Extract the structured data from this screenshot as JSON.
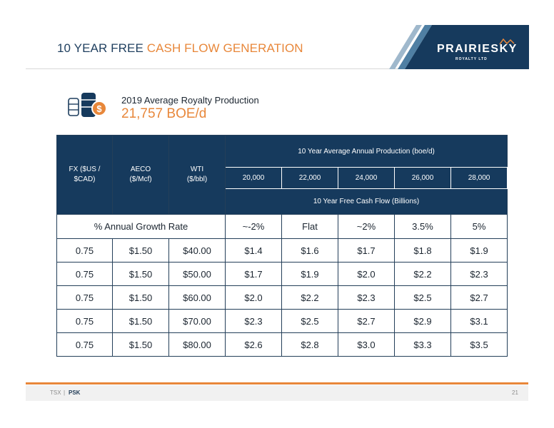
{
  "header": {
    "title_main": "10 YEAR FREE ",
    "title_accent": "CASH FLOW GENERATION"
  },
  "logo": {
    "text": "PRAIRIESKY",
    "subtext": "ROYALTY LTD"
  },
  "production": {
    "icon": "oil-barrels-dollar-icon",
    "label": "2019 Average Royalty Production",
    "value": "21,757 BOE/d"
  },
  "table": {
    "col_fx": "FX ($US / $CAD)",
    "col_aeco": "AECO ($/Mcf)",
    "col_wti": "WTI ($/bbl)",
    "production_header": "10 Year Average Annual Production (boe/d)",
    "production_levels": [
      "20,000",
      "22,000",
      "24,000",
      "26,000",
      "28,000"
    ],
    "fcf_header": "10 Year Free Cash Flow (Billions)",
    "growth_label": "% Annual Growth Rate",
    "growth_rates": [
      "~-2%",
      "Flat",
      "~2%",
      "3.5%",
      "5%"
    ],
    "rows": [
      {
        "fx": "0.75",
        "aeco": "$1.50",
        "wti": "$40.00",
        "values": [
          "$1.4",
          "$1.6",
          "$1.7",
          "$1.8",
          "$1.9"
        ]
      },
      {
        "fx": "0.75",
        "aeco": "$1.50",
        "wti": "$50.00",
        "values": [
          "$1.7",
          "$1.9",
          "$2.0",
          "$2.2",
          "$2.3"
        ]
      },
      {
        "fx": "0.75",
        "aeco": "$1.50",
        "wti": "$60.00",
        "values": [
          "$2.0",
          "$2.2",
          "$2.3",
          "$2.5",
          "$2.7"
        ]
      },
      {
        "fx": "0.75",
        "aeco": "$1.50",
        "wti": "$70.00",
        "values": [
          "$2.3",
          "$2.5",
          "$2.7",
          "$2.9",
          "$3.1"
        ]
      },
      {
        "fx": "0.75",
        "aeco": "$1.50",
        "wti": "$80.00",
        "values": [
          "$2.6",
          "$2.8",
          "$3.0",
          "$3.3",
          "$3.5"
        ]
      }
    ]
  },
  "footer": {
    "exchange": "TSX",
    "separator": "|",
    "ticker": "PSK",
    "page_number": "21"
  },
  "colors": {
    "navy": "#163a5d",
    "accent_orange": "#e8873a",
    "steel_blue": "#4f7fa3"
  }
}
